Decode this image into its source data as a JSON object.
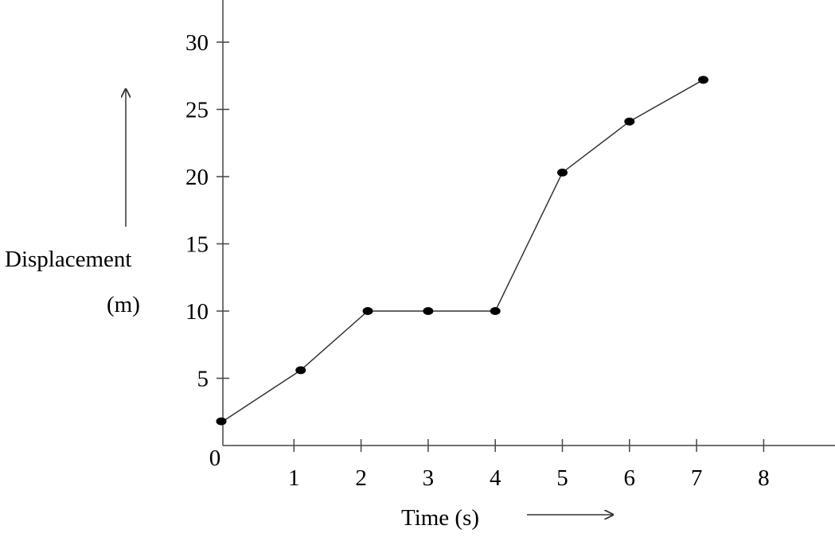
{
  "chart_data": {
    "type": "line",
    "title": "",
    "xlabel": "Time (s)",
    "ylabel_line1": "Displacement",
    "ylabel_line2": "(m)",
    "x_ticks": [
      0,
      1,
      2,
      3,
      4,
      5,
      6,
      7,
      8
    ],
    "y_ticks": [
      5,
      10,
      15,
      20,
      25,
      30
    ],
    "xlim": [
      0,
      9
    ],
    "ylim": [
      0,
      33
    ],
    "grid": false,
    "series": [
      {
        "x": [
          0,
          1.1,
          2.1,
          3,
          4,
          5,
          6,
          7.1
        ],
        "y": [
          1.8,
          5.6,
          10,
          10,
          10,
          20.3,
          24.1,
          27.2
        ],
        "color": "#000000",
        "marker": "filled-circle"
      }
    ]
  }
}
